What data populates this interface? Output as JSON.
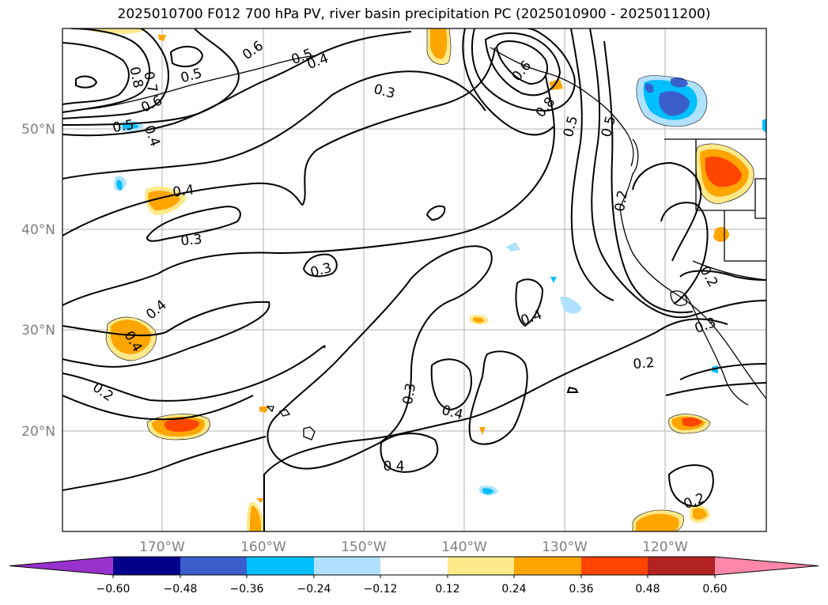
{
  "title": "2025010700 F012 700 hPa PV, river basin precipitation PC (2025010900 - 2025011200)",
  "lat_labels": [
    "50°N",
    "40°N",
    "30°N",
    "20°N"
  ],
  "lon_labels": [
    "170°W",
    "160°W",
    "150°W",
    "140°W",
    "130°W",
    "120°W"
  ],
  "contour_labels": [
    "0.8",
    "0.7",
    "0.6",
    "0.5",
    "0.5",
    "0.4",
    "0.6",
    "0.4",
    "0.3",
    "0.4",
    "0.3",
    "0.3",
    "0.4",
    "0.5",
    "0.2",
    "0.4",
    "0.3",
    "0.2",
    "0.3",
    "0.4",
    "0.4",
    "0.2",
    "0.2",
    "0.5",
    "0.6",
    "0.4",
    "0.8",
    "0.5",
    "0.2"
  ],
  "colorbar": {
    "tick_labels": [
      "−0.60",
      "−0.48",
      "−0.36",
      "−0.24",
      "−0.12",
      "0.12",
      "0.24",
      "0.36",
      "0.48",
      "0.60"
    ],
    "colors": [
      "#9932cc",
      "#00008b",
      "#3a5fcd",
      "#00bfff",
      "#b0e2ff",
      "#ffffff",
      "#ffe98a",
      "#ffa500",
      "#ff4500",
      "#b22222",
      "#ff88aa"
    ]
  }
}
